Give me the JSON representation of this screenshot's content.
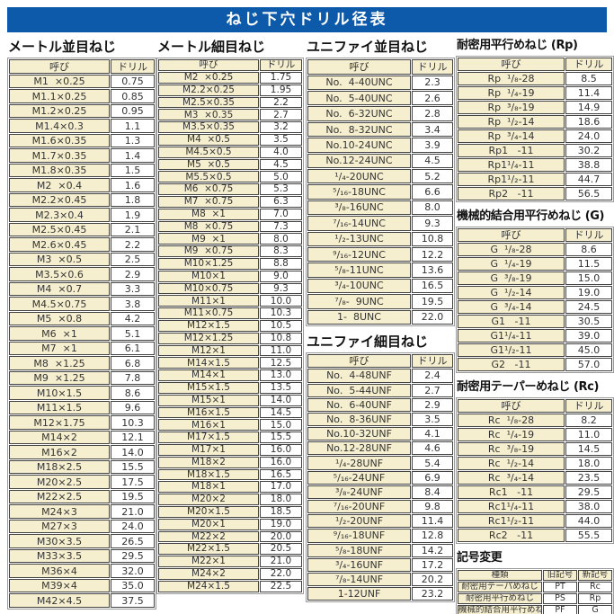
{
  "title": "ねじ下穴ドリル径表",
  "colors": {
    "banner_blue": "#0c5aa9",
    "cell_cream": "#f5efcf",
    "grid": "#434343"
  },
  "tables": [
    {
      "title": "メートル並目ねじ",
      "headers": [
        "呼び",
        "ドリル"
      ],
      "rows": [
        [
          "M1  ×0.25",
          "0.75"
        ],
        [
          "M1.1×0.25",
          "0.85"
        ],
        [
          "M1.2×0.25",
          "0.95"
        ],
        [
          "M1.4×0.3",
          "1.1"
        ],
        [
          "M1.6×0.35",
          "1.3"
        ],
        [
          "M1.7×0.35",
          "1.4"
        ],
        [
          "M1.8×0.35",
          "1.5"
        ],
        [
          "M2  ×0.4",
          "1.6"
        ],
        [
          "M2.2×0.45",
          "1.8"
        ],
        [
          "M2.3×0.4",
          "1.9"
        ],
        [
          "M2.5×0.45",
          "2.1"
        ],
        [
          "M2.6×0.45",
          "2.2"
        ],
        [
          "M3  ×0.5",
          "2.5"
        ],
        [
          "M3.5×0.6",
          "2.9"
        ],
        [
          "M4  ×0.7",
          "3.3"
        ],
        [
          "M4.5×0.75",
          "3.8"
        ],
        [
          "M5  ×0.8",
          "4.2"
        ],
        [
          "M6  ×1",
          "5.1"
        ],
        [
          "M7  ×1",
          "6.1"
        ],
        [
          "M8  ×1.25",
          "6.8"
        ],
        [
          "M9  ×1.25",
          "7.8"
        ],
        [
          "M10×1.5",
          "8.6"
        ],
        [
          "M11×1.5",
          "9.6"
        ],
        [
          "M12×1.75",
          "10.3"
        ],
        [
          "M14×2",
          "12.1"
        ],
        [
          "M16×2",
          "14.0"
        ],
        [
          "M18×2.5",
          "15.5"
        ],
        [
          "M20×2.5",
          "17.5"
        ],
        [
          "M22×2.5",
          "19.5"
        ],
        [
          "M24×3",
          "21.0"
        ],
        [
          "M27×3",
          "24.0"
        ],
        [
          "M30×3.5",
          "26.5"
        ],
        [
          "M33×3.5",
          "29.5"
        ],
        [
          "M36×4",
          "32.0"
        ],
        [
          "M39×4",
          "35.0"
        ],
        [
          "M42×4.5",
          "37.5"
        ]
      ]
    },
    {
      "title": "メートル細目ねじ",
      "headers": [
        "呼び",
        "ドリル"
      ],
      "rows": [
        [
          "M2  ×0.25",
          "1.75"
        ],
        [
          "M2.2×0.25",
          "1.95"
        ],
        [
          "M2.5×0.35",
          "2.2"
        ],
        [
          "M3  ×0.35",
          "2.7"
        ],
        [
          "M3.5×0.35",
          "3.2"
        ],
        [
          "M4  ×0.5",
          "3.5"
        ],
        [
          "M4.5×0.5",
          "4.0"
        ],
        [
          "M5  ×0.5",
          "4.5"
        ],
        [
          "M5.5×0.5",
          "5.0"
        ],
        [
          "M6  ×0.75",
          "5.3"
        ],
        [
          "M7  ×0.75",
          "6.3"
        ],
        [
          "M8  ×1",
          "7.0"
        ],
        [
          "M8  ×0.75",
          "7.3"
        ],
        [
          "M9  ×1",
          "8.0"
        ],
        [
          "M9  ×0.75",
          "8.3"
        ],
        [
          "M10×1.25",
          "8.8"
        ],
        [
          "M10×1",
          "9.0"
        ],
        [
          "M10×0.75",
          "9.3"
        ],
        [
          "M11×1",
          "10.0"
        ],
        [
          "M11×0.75",
          "10.3"
        ],
        [
          "M12×1.5",
          "10.5"
        ],
        [
          "M12×1.25",
          "10.8"
        ],
        [
          "M12×1",
          "11.0"
        ],
        [
          "M14×1.5",
          "12.5"
        ],
        [
          "M14×1",
          "13.0"
        ],
        [
          "M15×1.5",
          "13.5"
        ],
        [
          "M15×1",
          "14.0"
        ],
        [
          "M16×1.5",
          "14.5"
        ],
        [
          "M16×1",
          "15.0"
        ],
        [
          "M17×1.5",
          "15.5"
        ],
        [
          "M17×1",
          "16.0"
        ],
        [
          "M18×2",
          "16.0"
        ],
        [
          "M18×1.5",
          "16.5"
        ],
        [
          "M18×1",
          "17.0"
        ],
        [
          "M20×2",
          "18.0"
        ],
        [
          "M20×1.5",
          "18.5"
        ],
        [
          "M20×1",
          "19.0"
        ],
        [
          "M22×2",
          "20.0"
        ],
        [
          "M22×1.5",
          "20.5"
        ],
        [
          "M22×1",
          "21.0"
        ],
        [
          "M24×2",
          "22.0"
        ],
        [
          "M24×1.5",
          "22.5"
        ]
      ]
    },
    {
      "title": "ユニファイ並目ねじ",
      "headers": [
        "呼び",
        "ドリル"
      ],
      "rows": [
        [
          "No.  4-40UNC",
          "2.3"
        ],
        [
          "No.  5-40UNC",
          "2.6"
        ],
        [
          "No.  6-32UNC",
          "2.8"
        ],
        [
          "No.  8-32UNC",
          "3.4"
        ],
        [
          "No.10-24UNC",
          "3.9"
        ],
        [
          "No.12-24UNC",
          "4.5"
        ],
        [
          "¹/₄-20UNC",
          "5.2"
        ],
        [
          "⁵/₁₆-18UNC",
          "6.6"
        ],
        [
          "³/₈-16UNC",
          "8.0"
        ],
        [
          "⁷/₁₆-14UNC",
          "9.3"
        ],
        [
          "¹/₂-13UNC",
          "10.8"
        ],
        [
          "⁹/₁₆-12UNC",
          "12.2"
        ],
        [
          "⁵/₈-11UNC",
          "13.6"
        ],
        [
          "³/₄-10UNC",
          "16.5"
        ],
        [
          "⁷/₈-  9UNC",
          "19.5"
        ],
        [
          "1-  8UNC",
          "22.0"
        ]
      ]
    },
    {
      "title": "ユニファイ細目ねじ",
      "headers": [
        "呼び",
        "ドリル"
      ],
      "rows": [
        [
          "No.  4-48UNF",
          "2.4"
        ],
        [
          "No.  5-44UNF",
          "2.7"
        ],
        [
          "No.  6-40UNF",
          "2.9"
        ],
        [
          "No.  8-36UNF",
          "3.5"
        ],
        [
          "No.10-32UNF",
          "4.1"
        ],
        [
          "No.12-28UNF",
          "4.6"
        ],
        [
          "¹/₄-28UNF",
          "5.4"
        ],
        [
          "⁵/₁₆-24UNF",
          "6.9"
        ],
        [
          "³/₈-24UNF",
          "8.4"
        ],
        [
          "⁷/₁₆-20UNF",
          "9.8"
        ],
        [
          "¹/₂-20UNF",
          "11.4"
        ],
        [
          "⁹/₁₆-18UNF",
          "12.8"
        ],
        [
          "⁵/₈-18UNF",
          "14.2"
        ],
        [
          "³/₄-16UNF",
          "17.2"
        ],
        [
          "⁷/₈-14UNF",
          "20.2"
        ],
        [
          "1-12UNF",
          "23.2"
        ]
      ]
    },
    {
      "title": "耐密用平行めねじ (Rp)",
      "headers": [
        "呼び",
        "ドリル"
      ],
      "rows": [
        [
          "Rp  ¹/₈-28",
          "8.5"
        ],
        [
          "Rp  ¹/₄-19",
          "11.4"
        ],
        [
          "Rp  ³/₈-19",
          "14.9"
        ],
        [
          "Rp  ¹/₂-14",
          "18.6"
        ],
        [
          "Rp  ³/₄-14",
          "24.0"
        ],
        [
          "Rp1   -11",
          "30.2"
        ],
        [
          "Rp1¹/₄-11",
          "38.8"
        ],
        [
          "Rp1¹/₂-11",
          "44.7"
        ],
        [
          "Rp2   -11",
          "56.5"
        ]
      ]
    },
    {
      "title": "機械的結合用平行めねじ (G)",
      "headers": [
        "呼び",
        "ドリル"
      ],
      "rows": [
        [
          "G  ¹/₈-28",
          "8.6"
        ],
        [
          "G  ¹/₄-19",
          "11.5"
        ],
        [
          "G  ³/₈-19",
          "15.0"
        ],
        [
          "G  ¹/₂-14",
          "19.0"
        ],
        [
          "G  ³/₄-14",
          "24.5"
        ],
        [
          "G1   -11",
          "30.5"
        ],
        [
          "G1¹/₄-11",
          "39.0"
        ],
        [
          "G1¹/₂-11",
          "45.0"
        ],
        [
          "G2   -11",
          "57.0"
        ]
      ]
    },
    {
      "title": "耐密用テーパーめねじ (Rc)",
      "headers": [
        "呼び",
        "ドリル"
      ],
      "rows": [
        [
          "Rc  ¹/₈-28",
          "8.2"
        ],
        [
          "Rc  ¹/₄-19",
          "11.0"
        ],
        [
          "Rc  ³/₈-19",
          "14.5"
        ],
        [
          "Rc  ¹/₂-14",
          "18.0"
        ],
        [
          "Rc  ³/₄-14",
          "23.5"
        ],
        [
          "Rc1   -11",
          "29.5"
        ],
        [
          "Rc1¹/₄-11",
          "38.0"
        ],
        [
          "Rc1¹/₂-11",
          "44.0"
        ],
        [
          "Rc2   -11",
          "55.5"
        ]
      ]
    },
    {
      "title": "記号変更",
      "headers": [
        "種類",
        "旧記号",
        "新記号"
      ],
      "rows": [
        [
          "耐密用テーパめねじ",
          "PT",
          "Rc"
        ],
        [
          "耐密用平行めねじ",
          "PS",
          "Rp"
        ],
        [
          "機械的結合用平行めねじ",
          "PF",
          "G"
        ]
      ]
    }
  ]
}
